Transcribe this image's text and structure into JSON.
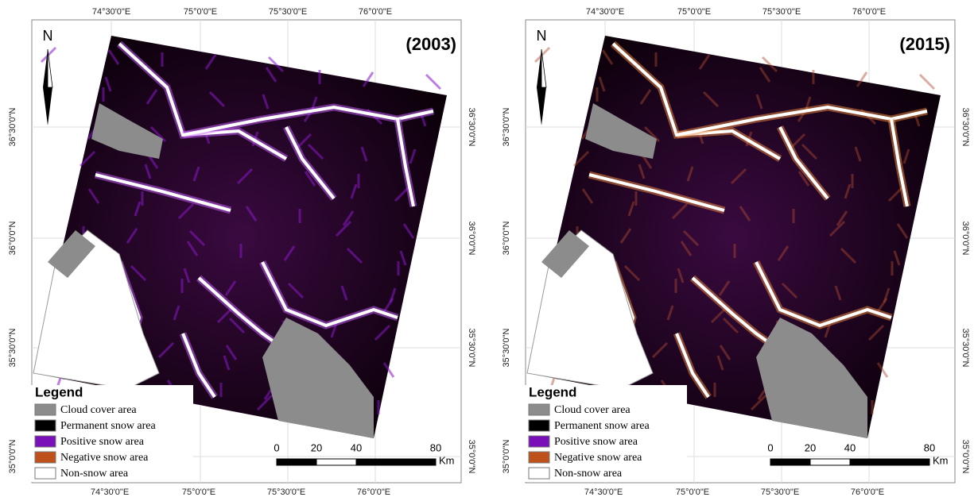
{
  "panels": [
    {
      "title": "(2003)",
      "north": "N",
      "top_labels": [
        "74°30'0\"E",
        "75°0'0\"E",
        "75°30'0\"E",
        "76°0'0\"E"
      ],
      "bottom_labels": [
        "74°30'0\"E",
        "75°0'0\"E",
        "75°30'0\"E",
        "76°0'0\"E"
      ],
      "left_labels": [
        "36°30'0\"N",
        "36°0'0\"N",
        "35°30'0\"N",
        "35°0'0\"N"
      ],
      "right_labels": [
        "36°30'0\"N",
        "36°0'0\"N",
        "35°30'0\"N",
        "35°0'0\"N"
      ],
      "legend": {
        "title": "Legend",
        "items": [
          {
            "label": "Cloud cover area",
            "color": "#8c8c8c"
          },
          {
            "label": "Permanent snow area",
            "color": "#000000"
          },
          {
            "label": "Positive snow area",
            "color": "#7a10b8"
          },
          {
            "label": "Negative snow area",
            "color": "#c0501a"
          },
          {
            "label": "Non-snow area",
            "color": "#ffffff"
          }
        ]
      },
      "scale": {
        "ticks": [
          0,
          20,
          40,
          80
        ],
        "unit": "Km"
      }
    },
    {
      "title": "(2015)",
      "north": "N",
      "top_labels": [
        "74°30'0\"E",
        "75°0'0\"E",
        "75°30'0\"E",
        "76°0'0\"E"
      ],
      "bottom_labels": [
        "74°30'0\"E",
        "75°0'0\"E",
        "75°30'0\"E",
        "76°0'0\"E"
      ],
      "left_labels": [
        "36°30'0\"N",
        "36°0'0\"N",
        "35°30'0\"N",
        "35°0'0\"N"
      ],
      "right_labels": [
        "36°30'0\"N",
        "36°0'0\"N",
        "35°30'0\"N",
        "35°0'0\"N"
      ],
      "legend": {
        "title": "Legend",
        "items": [
          {
            "label": "Cloud cover area",
            "color": "#8c8c8c"
          },
          {
            "label": "Permanent snow area",
            "color": "#000000"
          },
          {
            "label": "Positive snow area",
            "color": "#7a10b8"
          },
          {
            "label": "Negative snow area",
            "color": "#c0501a"
          },
          {
            "label": "Non-snow area",
            "color": "#ffffff"
          }
        ]
      },
      "scale": {
        "ticks": [
          0,
          20,
          40,
          80
        ],
        "unit": "Km"
      }
    }
  ]
}
